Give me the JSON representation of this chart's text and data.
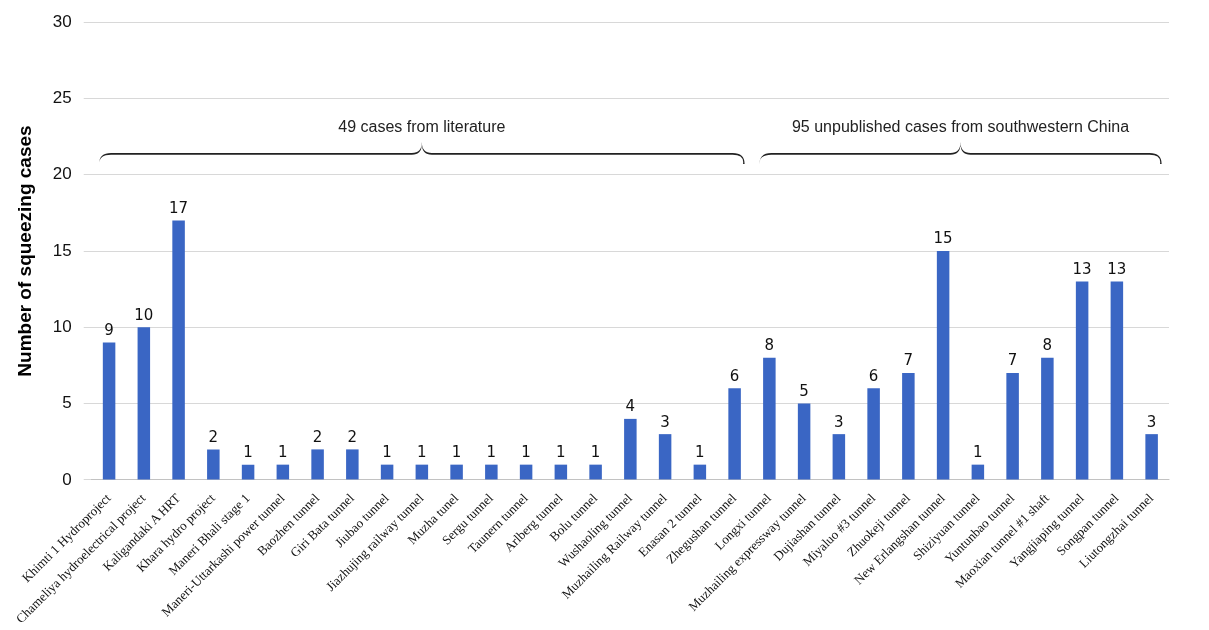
{
  "chart_data": {
    "type": "bar",
    "ylabel": "Number of squeezing cases",
    "categories": [
      "Khimti 1 Hydroproject",
      "Chameliya hydroelectrical project",
      "Kaligandaki A HRT",
      "Khara hydro project",
      "Maneri Bhali stage 1",
      "Maneri-Uttarkashi power tunnel",
      "Baozhen tunnel",
      "Giri Bata tunnel",
      "Jiubao tunnel",
      "Jiazhujing railway tunnel",
      "Muzha tunel",
      "Sergu tunnel",
      "Taunern tunnel",
      "Arlberg tunnel",
      "Bolu tunnel",
      "Wushaoling tunnel",
      "Muzhailing Railway tunnel",
      "Enasan 2 tunnel",
      "Zhegushan tunnel",
      "Longxi tunnel",
      "Muzhailing expressway tunnel",
      "Dujiashan tunnel",
      "Miyaluo #3 tunnel",
      "Zhuokeji tunnel",
      "New Erlangshan tunnel",
      "Shiziyuan tunnel",
      "Yuntunbao tunnel",
      "Maoxian tunnel #1 shaft",
      "Yangjiaping tunnel",
      "Songpan tunnel",
      "Liutongzhai tunnel"
    ],
    "values": [
      9,
      10,
      17,
      2,
      1,
      1,
      2,
      2,
      1,
      1,
      1,
      1,
      1,
      1,
      1,
      4,
      3,
      1,
      6,
      8,
      5,
      3,
      6,
      7,
      15,
      1,
      7,
      8,
      13,
      13,
      3
    ],
    "color": "#3a66c4",
    "ylim": [
      0,
      30
    ],
    "yticks": [
      0,
      5,
      10,
      15,
      20,
      25,
      30
    ],
    "grid": "y",
    "legend": false,
    "data_labels": true,
    "annotations": [
      "49 cases from literature",
      "95 unpublished cases from southwestern China"
    ]
  }
}
